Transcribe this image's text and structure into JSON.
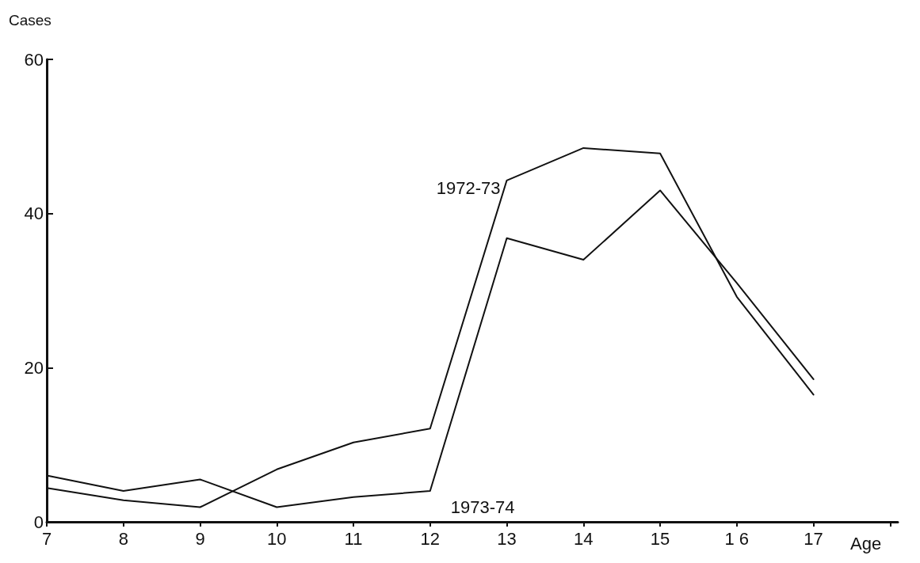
{
  "chart_data": {
    "type": "line",
    "xlabel": "Age",
    "ylabel": "Cases",
    "x": [
      7,
      8,
      9,
      10,
      11,
      12,
      13,
      14,
      15,
      16,
      17
    ],
    "series": [
      {
        "name": "1972-73",
        "color": "#111111",
        "values": [
          4.4,
          2.8,
          1.9,
          6.8,
          10.3,
          12.1,
          44.3,
          48.5,
          47.8,
          29.2,
          16.5
        ]
      },
      {
        "name": "1973-74",
        "color": "#111111",
        "values": [
          6,
          4,
          5.5,
          1.9,
          3.2,
          4,
          36.8,
          34,
          43,
          31,
          18.5
        ]
      }
    ],
    "xlim": [
      7,
      18.1
    ],
    "xticks": [
      7,
      8,
      9,
      10,
      11,
      12,
      13,
      14,
      15,
      {
        "value": 16,
        "label": "1 6"
      },
      17,
      {
        "value": 18,
        "label": null
      }
    ],
    "ylim": [
      0,
      60
    ],
    "yticks": [
      0,
      20,
      40,
      60
    ],
    "grid": false,
    "legend": false,
    "marker": "none",
    "line_style": "solid"
  }
}
